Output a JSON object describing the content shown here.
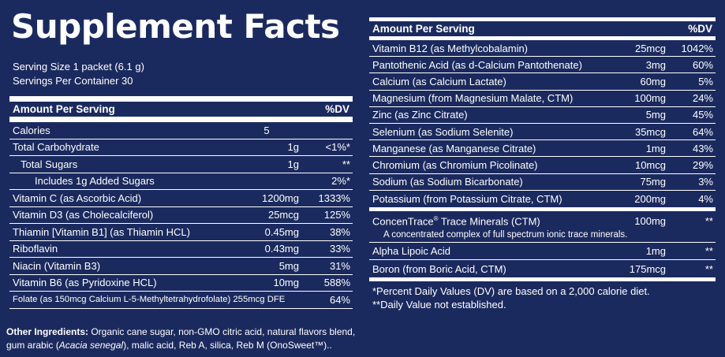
{
  "title": "Supplement Facts",
  "serving_size": "Serving Size 1 packet (6.1 g)",
  "servings_per_container": "Servings Per Container 30",
  "header_amount": "Amount Per Serving",
  "header_dv": "%DV",
  "left_rows": [
    {
      "name": "Calories",
      "amount": "5",
      "dv": ""
    },
    {
      "name": "Total Carbohydrate",
      "amount": "1g",
      "dv": "<1%*"
    },
    {
      "name": "Total Sugars",
      "amount": "1g",
      "dv": "**"
    },
    {
      "name": "Includes 1g Added Sugars",
      "amount": "",
      "dv": "2%*"
    },
    {
      "name": "Vitamin C (as Ascorbic Acid)",
      "amount": "1200mg",
      "dv": "1333%"
    },
    {
      "name": "Vitamin D3 (as Cholecalciferol)",
      "amount": "25mcg",
      "dv": "125%"
    },
    {
      "name": "Thiamin [Vitamin B1] (as Thiamin HCL)",
      "amount": "0.45mg",
      "dv": "38%"
    },
    {
      "name": "Riboflavin",
      "amount": "0.43mg",
      "dv": "33%"
    },
    {
      "name": "Niacin (Vitamin B3)",
      "amount": "5mg",
      "dv": "31%"
    },
    {
      "name": "Vitamin B6 (as Pyridoxine HCL)",
      "amount": "10mg",
      "dv": "588%"
    },
    {
      "name": "Folate (as 150mcg Calcium L-5-Methyltetrahydrofolate) 255mcg DFE",
      "amount": "",
      "dv": "64%"
    }
  ],
  "right_rows": [
    {
      "name": "Vitamin B12 (as Methylcobalamin)",
      "amount": "25mcg",
      "dv": "1042%"
    },
    {
      "name": "Pantothenic Acid (as d-Calcium Pantothenate)",
      "amount": "3mg",
      "dv": "60%"
    },
    {
      "name": "Calcium (as Calcium Lactate)",
      "amount": "60mg",
      "dv": "5%"
    },
    {
      "name": "Magnesium (from Magnesium Malate, CTM)",
      "amount": "100mg",
      "dv": "24%"
    },
    {
      "name": "Zinc (as Zinc Citrate)",
      "amount": "5mg",
      "dv": "45%"
    },
    {
      "name": "Selenium (as Sodium Selenite)",
      "amount": "35mcg",
      "dv": "64%"
    },
    {
      "name": "Manganese (as Manganese Citrate)",
      "amount": "1mg",
      "dv": "43%"
    },
    {
      "name": "Chromium (as Chromium Picolinate)",
      "amount": "10mcg",
      "dv": "29%"
    },
    {
      "name": "Sodium (as Sodium Bicarbonate)",
      "amount": "75mg",
      "dv": "3%"
    },
    {
      "name": "Potassium (from Potassium Citrate, CTM)",
      "amount": "200mg",
      "dv": "4%"
    }
  ],
  "blend": {
    "name_prefix": "ConcenTrace",
    "name_mark": "®",
    "name_suffix": " Trace Minerals (CTM)",
    "amount": "100mg",
    "dv": "**",
    "description": "A concentrated complex of full spectrum ionic trace minerals."
  },
  "extra_rows": [
    {
      "name": "Alpha Lipoic Acid",
      "amount": "1mg",
      "dv": "**"
    },
    {
      "name": "Boron (from Boric Acid, CTM)",
      "amount": "175mcg",
      "dv": "**"
    }
  ],
  "footnote_1": "*Percent Daily Values (DV) are based on a 2,000 calorie diet.",
  "footnote_2": "**Daily Value not established.",
  "other_label": "Other Ingredients:",
  "other_line1": " Organic cane sugar, non-GMO citric acid, natural flavors blend,",
  "other_line2a": "gum arabic (",
  "other_line2_italic": "Acacia senegal",
  "other_line2b": "), malic acid, Reb A, silica, Reb M (OnoSweet™).."
}
